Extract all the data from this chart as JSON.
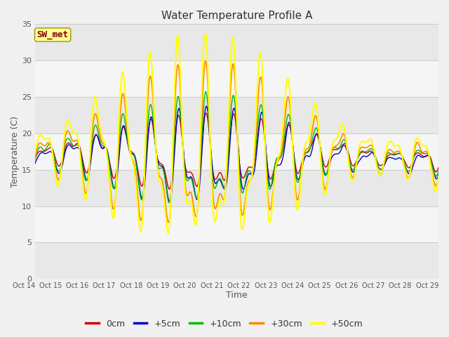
{
  "title": "Water Temperature Profile A",
  "xlabel": "Time",
  "ylabel": "Temperature (C)",
  "ylim": [
    0,
    35
  ],
  "n_days": 15,
  "x_tick_labels": [
    "Oct 14",
    "Oct 15",
    "Oct 16",
    "Oct 17",
    "Oct 18",
    "Oct 19",
    "Oct 20",
    "Oct 21",
    "Oct 22",
    "Oct 23",
    "Oct 24",
    "Oct 25",
    "Oct 26",
    "Oct 27",
    "Oct 28",
    "Oct 29"
  ],
  "yticks": [
    0,
    5,
    10,
    15,
    20,
    25,
    30,
    35
  ],
  "series_labels": [
    "0cm",
    "+5cm",
    "+10cm",
    "+30cm",
    "+50cm"
  ],
  "series_colors": [
    "#cc0000",
    "#0000cc",
    "#00bb00",
    "#ff8800",
    "#ffff00"
  ],
  "line_widths": [
    1.0,
    1.0,
    1.0,
    1.2,
    1.5
  ],
  "band_colors_even": "#e8e8e8",
  "band_colors_odd": "#f5f5f5",
  "plot_bg": "#f5f5f5",
  "fig_bg": "#f0f0f0",
  "grid_line_color": "#cccccc",
  "annotation_text": "SW_met",
  "annotation_bg": "#ffff99",
  "annotation_border": "#999900",
  "annotation_fg": "#880000",
  "n_points": 1500
}
